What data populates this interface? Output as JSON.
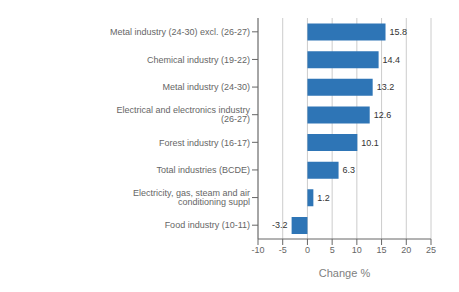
{
  "chart_data": {
    "type": "bar",
    "orientation": "horizontal",
    "categories": [
      "Food industry (10-11)",
      "Electricity, gas, steam and air conditioning suppl",
      "Total industries (BCDE)",
      "Forest industry (16-17)",
      "Electrical and electronics industry (26-27)",
      "Metal industry (24-30)",
      "Chemical industry (19-22)",
      "Metal industry (24-30) excl. (26-27)"
    ],
    "values": [
      -3.2,
      1.2,
      6.3,
      10.1,
      12.6,
      13.2,
      14.4,
      15.8
    ],
    "color": "#2E75B6",
    "xlabel": "Change %",
    "xlim": [
      -10,
      25
    ],
    "xticks": [
      -10,
      -5,
      0,
      5,
      10,
      15,
      20,
      25
    ],
    "grid": true,
    "data_labels": true
  }
}
